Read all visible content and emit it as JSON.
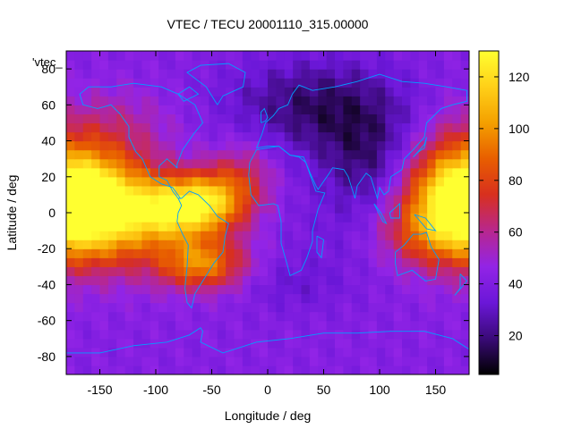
{
  "chart_data": {
    "type": "heatmap",
    "title": "VTEC / TECU 20001110_315.00000",
    "xlabel": "Longitude / deg",
    "ylabel": "Latitude / deg",
    "key_label": "'vtec_",
    "xlim": [
      -180,
      180
    ],
    "ylim": [
      -90,
      90
    ],
    "xticks": [
      -150,
      -100,
      -50,
      0,
      50,
      100,
      150
    ],
    "yticks": [
      -80,
      -60,
      -40,
      -20,
      0,
      20,
      40,
      60,
      80
    ],
    "colorbar": {
      "range": [
        5,
        130
      ],
      "ticks": [
        20,
        40,
        60,
        80,
        100,
        120
      ]
    },
    "colormap": [
      "#000000",
      "#3a0a78",
      "#6b17d8",
      "#9224e6",
      "#b8278e",
      "#d8301e",
      "#e85e00",
      "#f4a000",
      "#ffd018",
      "#ffff30"
    ],
    "coastline_color": "#00a0ff",
    "grid": {
      "lon_step": 7.5,
      "lat_step": 5
    },
    "features": [
      {
        "lon": -165,
        "lat": 5,
        "sx": 35,
        "sy": 20,
        "amp": 70
      },
      {
        "lon": -130,
        "lat": 0,
        "sx": 30,
        "sy": 20,
        "amp": 40
      },
      {
        "lon": -85,
        "lat": 2,
        "sx": 25,
        "sy": 12,
        "amp": 65
      },
      {
        "lon": -52,
        "lat": 6,
        "sx": 22,
        "sy": 12,
        "amp": 55
      },
      {
        "lon": -60,
        "lat": -28,
        "sx": 28,
        "sy": 10,
        "amp": 55
      },
      {
        "lon": -22,
        "lat": 18,
        "sx": 20,
        "sy": 15,
        "amp": 25
      },
      {
        "lon": 165,
        "lat": 8,
        "sx": 32,
        "sy": 22,
        "amp": 60
      },
      {
        "lon": 135,
        "lat": -12,
        "sx": 28,
        "sy": 12,
        "amp": 20
      },
      {
        "lon": -140,
        "lat": 48,
        "sx": 40,
        "sy": 15,
        "amp": 15
      },
      {
        "lon": 45,
        "lat": 60,
        "sx": 55,
        "sy": 18,
        "amp": -25
      },
      {
        "lon": 90,
        "lat": 30,
        "sx": 30,
        "sy": 20,
        "amp": -20
      },
      {
        "lon": 60,
        "lat": -10,
        "sx": 40,
        "sy": 25,
        "amp": -5
      },
      {
        "lon": 20,
        "lat": -40,
        "sx": 30,
        "sy": 10,
        "amp": -8
      }
    ],
    "base_level": 42
  }
}
